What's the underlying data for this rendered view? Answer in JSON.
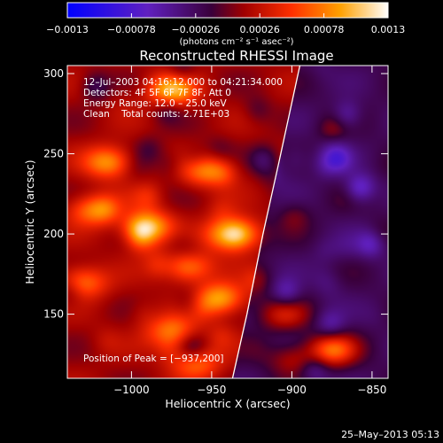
{
  "chart_data": {
    "type": "heatmap",
    "title": "Reconstructed RHESSI Image",
    "xlabel": "Heliocentric X (arcsec)",
    "ylabel": "Heliocentric Y (arcsec)",
    "xlim": [
      -1040,
      -840
    ],
    "ylim": [
      110,
      305
    ],
    "xticks": [
      -1000,
      -950,
      -900,
      -850
    ],
    "xtick_labels": [
      "−1000",
      "−950",
      "−900",
      "−850"
    ],
    "yticks": [
      150,
      200,
      250,
      300
    ],
    "ytick_labels": [
      "150",
      "200",
      "250",
      "300"
    ],
    "colorbar": {
      "min": -0.0013,
      "max": 0.0013,
      "tick_values": [
        -0.0013,
        -0.00078,
        -0.00026,
        0.00026,
        0.00078,
        0.0013
      ],
      "tick_labels": [
        "−0.0013",
        "−0.00078",
        "−0.00026",
        "0.00026",
        "0.00078",
        "0.0013"
      ],
      "units_label": "(photons cm⁻² s⁻¹ asec⁻²)"
    },
    "annotations": [
      "12–Jul–2003 04:16:12.000 to 04:21:34.000",
      "Detectors: 4F 5F 6F 7F 8F, Att 0",
      "Energy Range: 12.0 – 25.0 keV",
      "Clean    Total counts: 2.71E+03"
    ],
    "peak_label": "Position of Peak = [−937,200]",
    "peak": {
      "x": -937,
      "y": 200
    },
    "limb_line": [
      [
        -937,
        110
      ],
      [
        -928,
        150
      ],
      [
        -918,
        200
      ],
      [
        -908,
        245
      ],
      [
        -895,
        305
      ]
    ],
    "sources": [
      {
        "x": -937,
        "y": 200,
        "amp": 0.0013
      },
      {
        "x": -975,
        "y": 290,
        "amp": 0.0009
      },
      {
        "x": -1015,
        "y": 245,
        "amp": 0.00075
      },
      {
        "x": -955,
        "y": 240,
        "amp": 0.0007
      },
      {
        "x": -990,
        "y": 205,
        "amp": 0.00085
      },
      {
        "x": -965,
        "y": 180,
        "amp": 0.0007
      },
      {
        "x": -1030,
        "y": 170,
        "amp": 0.0006
      },
      {
        "x": -945,
        "y": 160,
        "amp": 0.0008
      },
      {
        "x": -975,
        "y": 140,
        "amp": 0.0006
      },
      {
        "x": -960,
        "y": 120,
        "amp": 0.0006
      },
      {
        "x": -1025,
        "y": 215,
        "amp": 0.0006
      },
      {
        "x": -875,
        "y": 128,
        "amp": 0.0009
      },
      {
        "x": -905,
        "y": 150,
        "amp": 0.0005
      },
      {
        "x": -900,
        "y": 122,
        "amp": 0.0004
      }
    ],
    "grid": false,
    "colormap": "rainbow-to-white"
  },
  "footer_date": "25–May–2013 05:13"
}
